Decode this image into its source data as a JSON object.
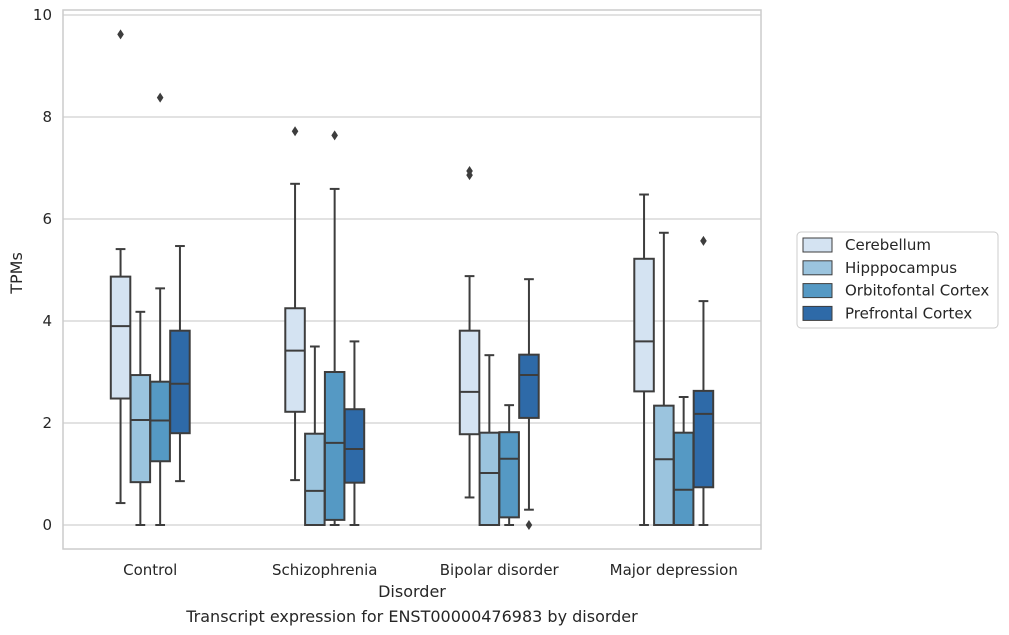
{
  "chart_data": {
    "type": "box",
    "title": "",
    "caption": "Transcript expression for ENST00000476983 by disorder",
    "xlabel": "Disorder",
    "ylabel": "TPMs",
    "ylim": [
      -0.45,
      10.12
    ],
    "yticks": [
      0,
      2,
      4,
      6,
      8,
      10
    ],
    "grid": true,
    "legend_position": "right",
    "categories": [
      "Control",
      "Schizophrenia",
      "Bipolar disorder",
      "Major depression"
    ],
    "series": [
      {
        "name": "Cerebellum",
        "color": "#d4e3f2",
        "boxes": [
          {
            "whislo": 0.43,
            "q1": 2.48,
            "med": 3.9,
            "q3": 4.87,
            "whishi": 5.41,
            "fliers": [
              9.62
            ]
          },
          {
            "whislo": 0.88,
            "q1": 2.22,
            "med": 3.42,
            "q3": 4.25,
            "whishi": 6.69,
            "fliers": [
              7.72
            ]
          },
          {
            "whislo": 0.54,
            "q1": 1.78,
            "med": 2.61,
            "q3": 3.81,
            "whishi": 4.88,
            "fliers": [
              6.86,
              6.94
            ]
          },
          {
            "whislo": 0.0,
            "q1": 2.62,
            "med": 3.6,
            "q3": 5.22,
            "whishi": 6.48,
            "fliers": []
          }
        ]
      },
      {
        "name": "Hipppocampus",
        "color": "#9bc4de",
        "boxes": [
          {
            "whislo": 0.0,
            "q1": 0.84,
            "med": 2.06,
            "q3": 2.94,
            "whishi": 4.18,
            "fliers": []
          },
          {
            "whislo": 0.0,
            "q1": 0.0,
            "med": 0.67,
            "q3": 1.79,
            "whishi": 3.5,
            "fliers": []
          },
          {
            "whislo": 0.0,
            "q1": 0.0,
            "med": 1.02,
            "q3": 1.81,
            "whishi": 3.33,
            "fliers": []
          },
          {
            "whislo": 0.0,
            "q1": 0.0,
            "med": 1.29,
            "q3": 2.34,
            "whishi": 5.73,
            "fliers": []
          }
        ]
      },
      {
        "name": "Orbitofontal Cortex",
        "color": "#5599c4",
        "boxes": [
          {
            "whislo": 0.0,
            "q1": 1.25,
            "med": 2.05,
            "q3": 2.81,
            "whishi": 4.64,
            "fliers": [
              8.38
            ]
          },
          {
            "whislo": 0.0,
            "q1": 0.1,
            "med": 1.61,
            "q3": 3.0,
            "whishi": 6.59,
            "fliers": [
              7.64
            ]
          },
          {
            "whislo": 0.0,
            "q1": 0.15,
            "med": 1.3,
            "q3": 1.82,
            "whishi": 2.35,
            "fliers": []
          },
          {
            "whislo": 0.0,
            "q1": 0.0,
            "med": 0.69,
            "q3": 1.81,
            "whishi": 2.51,
            "fliers": []
          }
        ]
      },
      {
        "name": "Prefrontal Cortex",
        "color": "#2e6aa8",
        "boxes": [
          {
            "whislo": 0.86,
            "q1": 1.8,
            "med": 2.77,
            "q3": 3.81,
            "whishi": 5.47,
            "fliers": []
          },
          {
            "whislo": 0.0,
            "q1": 0.83,
            "med": 1.49,
            "q3": 2.27,
            "whishi": 3.6,
            "fliers": []
          },
          {
            "whislo": 0.3,
            "q1": 2.1,
            "med": 2.94,
            "q3": 3.34,
            "whishi": 4.82,
            "fliers": [
              0.0
            ]
          },
          {
            "whislo": 0.0,
            "q1": 0.74,
            "med": 2.18,
            "q3": 2.63,
            "whishi": 4.39,
            "fliers": [
              5.57
            ]
          }
        ]
      }
    ]
  }
}
